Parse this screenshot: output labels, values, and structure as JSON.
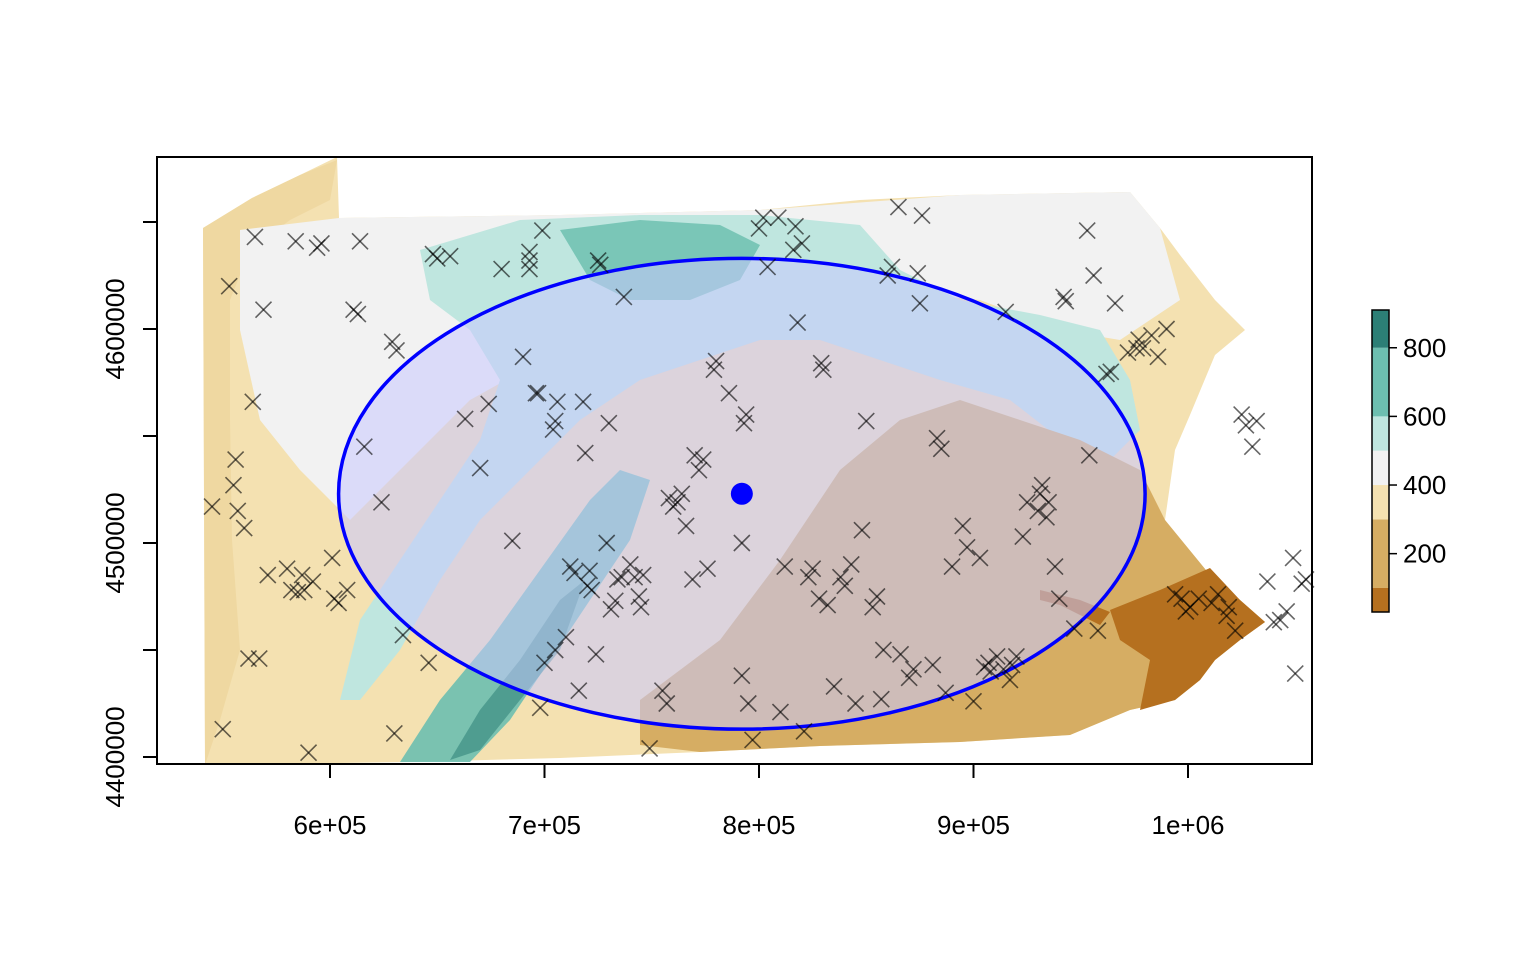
{
  "chart_data": {
    "type": "map",
    "title": "",
    "xlabel": "",
    "ylabel": "",
    "xlim": [
      540000,
      1040000
    ],
    "ylim": [
      4400000,
      4660000
    ],
    "x_ticks": [
      600000,
      700000,
      800000,
      900000,
      1000000
    ],
    "x_tick_labels": [
      "6e+05",
      "7e+05",
      "8e+05",
      "9e+05",
      "1e+06"
    ],
    "y_ticks": [
      4400000,
      4450000,
      4500000,
      4550000,
      4600000,
      4650000
    ],
    "y_tick_labels": [
      "4400000",
      "",
      "4500000",
      "",
      "4600000",
      ""
    ],
    "legend": {
      "position": "right",
      "breaks": [
        0,
        100,
        200,
        300,
        400,
        500,
        600,
        700,
        800,
        900
      ],
      "tick_values": [
        200,
        400,
        600,
        800
      ],
      "tick_labels": [
        "200",
        "400",
        "600",
        "800"
      ],
      "colors": [
        "#b5701f",
        "#d6ad63",
        "#f4e1b1",
        "#f2f2f2",
        "#bfe6df",
        "#6dbfb0",
        "#2c7f76"
      ]
    },
    "center_point": {
      "x": 792000,
      "y": 4523000,
      "color": "#0000ff"
    },
    "ellipse": {
      "center_x": 792000,
      "center_y": 4523000,
      "semi_major_x": 188000,
      "semi_minor_y": 110000,
      "color": "#0000ff",
      "fill": "#c8c8ff"
    },
    "points_marker": "x",
    "points": [
      [
        545000,
        4517000
      ],
      [
        550000,
        4413000
      ],
      [
        553000,
        4620000
      ],
      [
        555000,
        4527000
      ],
      [
        556000,
        4539000
      ],
      [
        557000,
        4515000
      ],
      [
        560000,
        4507000
      ],
      [
        562000,
        4446000
      ],
      [
        564000,
        4566000
      ],
      [
        565000,
        4643000
      ],
      [
        567000,
        4446000
      ],
      [
        569000,
        4609000
      ],
      [
        571000,
        4485000
      ],
      [
        580000,
        4488000
      ],
      [
        582000,
        4478000
      ],
      [
        584000,
        4641000
      ],
      [
        585000,
        4477000
      ],
      [
        587000,
        4485000
      ],
      [
        588000,
        4478000
      ],
      [
        590000,
        4402000
      ],
      [
        592000,
        4482000
      ],
      [
        594000,
        4638000
      ],
      [
        596000,
        4640000
      ],
      [
        601000,
        4493000
      ],
      [
        602000,
        4474000
      ],
      [
        604000,
        4472000
      ],
      [
        608000,
        4478000
      ],
      [
        611000,
        4609000
      ],
      [
        613000,
        4607000
      ],
      [
        614000,
        4641000
      ],
      [
        616000,
        4545000
      ],
      [
        624000,
        4519000
      ],
      [
        629000,
        4594000
      ],
      [
        630000,
        4411000
      ],
      [
        631000,
        4590000
      ],
      [
        634000,
        4457000
      ],
      [
        646000,
        4444000
      ],
      [
        648000,
        4635000
      ],
      [
        650000,
        4633000
      ],
      [
        656000,
        4634000
      ],
      [
        663000,
        4558000
      ],
      [
        670000,
        4535000
      ],
      [
        674000,
        4565000
      ],
      [
        680000,
        4628000
      ],
      [
        685000,
        4501000
      ],
      [
        690000,
        4587000
      ],
      [
        693000,
        4632000
      ],
      [
        693000,
        4636000
      ],
      [
        693000,
        4628000
      ],
      [
        696000,
        4570000
      ],
      [
        697000,
        4570000
      ],
      [
        698000,
        4423000
      ],
      [
        699000,
        4646000
      ],
      [
        700000,
        4444000
      ],
      [
        704000,
        4553000
      ],
      [
        705000,
        4450000
      ],
      [
        705000,
        4557000
      ],
      [
        706000,
        4566000
      ],
      [
        710000,
        4456000
      ],
      [
        712000,
        4489000
      ],
      [
        714000,
        4486000
      ],
      [
        716000,
        4431000
      ],
      [
        718000,
        4566000
      ],
      [
        719000,
        4542000
      ],
      [
        720000,
        4480000
      ],
      [
        721000,
        4487000
      ],
      [
        722000,
        4478000
      ],
      [
        724000,
        4448000
      ],
      [
        725000,
        4632000
      ],
      [
        726000,
        4630000
      ],
      [
        729000,
        4500000
      ],
      [
        730000,
        4556000
      ],
      [
        731000,
        4469000
      ],
      [
        733000,
        4473000
      ],
      [
        734000,
        4483000
      ],
      [
        736000,
        4484000
      ],
      [
        737000,
        4615000
      ],
      [
        740000,
        4490000
      ],
      [
        742000,
        4484000
      ],
      [
        744000,
        4475000
      ],
      [
        745000,
        4470000
      ],
      [
        746000,
        4485000
      ],
      [
        749000,
        4404000
      ],
      [
        755000,
        4431000
      ],
      [
        757000,
        4425000
      ],
      [
        758000,
        4521000
      ],
      [
        760000,
        4517000
      ],
      [
        762000,
        4519000
      ],
      [
        764000,
        4523000
      ],
      [
        766000,
        4508000
      ],
      [
        769000,
        4483000
      ],
      [
        770000,
        4541000
      ],
      [
        772000,
        4534000
      ],
      [
        774000,
        4539000
      ],
      [
        776000,
        4488000
      ],
      [
        779000,
        4581000
      ],
      [
        780000,
        4585000
      ],
      [
        786000,
        4570000
      ],
      [
        792000,
        4500000
      ],
      [
        792000,
        4438000
      ],
      [
        793000,
        4556000
      ],
      [
        794000,
        4560000
      ],
      [
        795000,
        4425000
      ],
      [
        797000,
        4408000
      ],
      [
        800000,
        4647000
      ],
      [
        802000,
        4652000
      ],
      [
        804000,
        4629000
      ],
      [
        809000,
        4652000
      ],
      [
        810000,
        4421000
      ],
      [
        812000,
        4489000
      ],
      [
        816000,
        4637000
      ],
      [
        817000,
        4648000
      ],
      [
        818000,
        4603000
      ],
      [
        820000,
        4640000
      ],
      [
        821000,
        4412000
      ],
      [
        823000,
        4484000
      ],
      [
        825000,
        4488000
      ],
      [
        828000,
        4474000
      ],
      [
        829000,
        4584000
      ],
      [
        830000,
        4581000
      ],
      [
        832000,
        4471000
      ],
      [
        835000,
        4433000
      ],
      [
        838000,
        4484000
      ],
      [
        840000,
        4480000
      ],
      [
        843000,
        4490000
      ],
      [
        845000,
        4425000
      ],
      [
        848000,
        4506000
      ],
      [
        850000,
        4557000
      ],
      [
        853000,
        4470000
      ],
      [
        855000,
        4475000
      ],
      [
        857000,
        4427000
      ],
      [
        858000,
        4450000
      ],
      [
        860000,
        4625000
      ],
      [
        862000,
        4629000
      ],
      [
        865000,
        4657000
      ],
      [
        866000,
        4448000
      ],
      [
        870000,
        4437000
      ],
      [
        872000,
        4441000
      ],
      [
        874000,
        4626000
      ],
      [
        875000,
        4612000
      ],
      [
        876000,
        4653000
      ],
      [
        881000,
        4443000
      ],
      [
        883000,
        4549000
      ],
      [
        885000,
        4544000
      ],
      [
        887000,
        4430000
      ],
      [
        890000,
        4489000
      ],
      [
        895000,
        4508000
      ],
      [
        897000,
        4498000
      ],
      [
        900000,
        4426000
      ],
      [
        903000,
        4493000
      ],
      [
        905000,
        4442000
      ],
      [
        907000,
        4444000
      ],
      [
        908000,
        4440000
      ],
      [
        911000,
        4447000
      ],
      [
        914000,
        4441000
      ],
      [
        915000,
        4608000
      ],
      [
        917000,
        4436000
      ],
      [
        918000,
        4443000
      ],
      [
        920000,
        4447000
      ],
      [
        923000,
        4503000
      ],
      [
        925000,
        4519000
      ],
      [
        930000,
        4515000
      ],
      [
        931000,
        4523000
      ],
      [
        932000,
        4527000
      ],
      [
        934000,
        4512000
      ],
      [
        935000,
        4519000
      ],
      [
        938000,
        4489000
      ],
      [
        940000,
        4474000
      ],
      [
        942000,
        4615000
      ],
      [
        943000,
        4613000
      ],
      [
        947000,
        4460000
      ],
      [
        953000,
        4646000
      ],
      [
        954000,
        4541000
      ],
      [
        956000,
        4625000
      ],
      [
        958000,
        4459000
      ],
      [
        962000,
        4579000
      ],
      [
        964000,
        4580000
      ],
      [
        966000,
        4612000
      ],
      [
        972000,
        4589000
      ],
      [
        976000,
        4591000
      ],
      [
        977000,
        4595000
      ],
      [
        979000,
        4591000
      ],
      [
        983000,
        4597000
      ],
      [
        986000,
        4587000
      ],
      [
        990000,
        4600000
      ],
      [
        994000,
        4476000
      ],
      [
        997000,
        4474000
      ],
      [
        999000,
        4468000
      ],
      [
        1001000,
        4470000
      ],
      [
        1005000,
        4474000
      ],
      [
        1011000,
        4472000
      ],
      [
        1014000,
        4476000
      ],
      [
        1018000,
        4466000
      ],
      [
        1019000,
        4470000
      ],
      [
        1022000,
        4459000
      ],
      [
        1025000,
        4560000
      ],
      [
        1027000,
        4555000
      ],
      [
        1030000,
        4545000
      ],
      [
        1032000,
        4557000
      ],
      [
        1037000,
        4482000
      ],
      [
        1040000,
        4463000
      ],
      [
        1043000,
        4464000
      ],
      [
        1046000,
        4468000
      ],
      [
        1049000,
        4493000
      ],
      [
        1050000,
        4439000
      ],
      [
        1053000,
        4481000
      ],
      [
        1055000,
        4483000
      ]
    ]
  }
}
